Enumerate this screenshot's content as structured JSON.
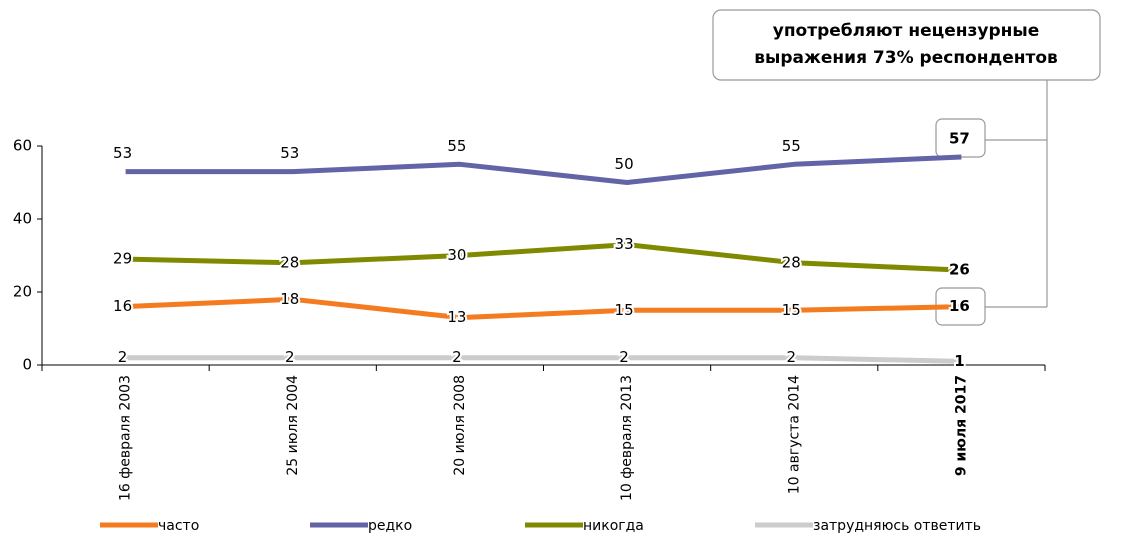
{
  "chart_data": {
    "type": "line",
    "annotation": [
      "употребляют нецензурные",
      "выражения 73% респондентов"
    ],
    "categories": [
      "16 февраля 2003",
      "25 июля 2004",
      "20 июля 2008",
      "10 февраля 2013",
      "10 августа 2014",
      "9 июля 2017"
    ],
    "series": [
      {
        "name": "часто",
        "color": "#f47b20",
        "values": [
          16,
          18,
          13,
          15,
          15,
          16
        ]
      },
      {
        "name": "редко",
        "color": "#6264a7",
        "values": [
          53,
          53,
          55,
          50,
          55,
          57
        ]
      },
      {
        "name": "никогда",
        "color": "#808a00",
        "values": [
          29,
          28,
          30,
          33,
          28,
          26
        ]
      },
      {
        "name": "затрудняюсь ответить",
        "color": "#cccccc",
        "values": [
          2,
          2,
          2,
          2,
          2,
          1
        ]
      }
    ],
    "ylim": [
      0,
      60
    ],
    "yticks": [
      0,
      20,
      40,
      60
    ],
    "grid": false,
    "legend": "bottom"
  }
}
